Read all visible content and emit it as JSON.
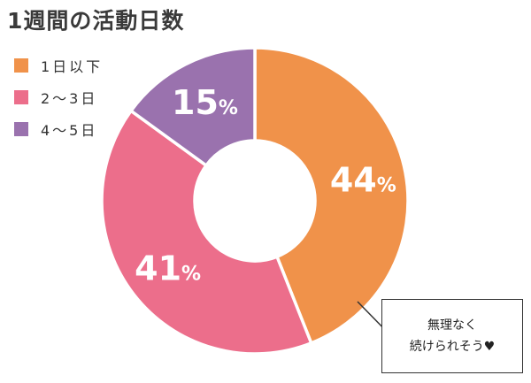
{
  "chart_data": {
    "type": "pie",
    "title": "1週間の活動日数",
    "categories": [
      "1日以下",
      "2〜3日",
      "4〜5日"
    ],
    "values": [
      44,
      41,
      15
    ],
    "value_labels": [
      "44",
      "41",
      "15"
    ],
    "unit": "%",
    "colors": [
      "#F0924A",
      "#EC6E8B",
      "#9A72AE"
    ],
    "legend_placement": "top-left",
    "donut": true
  },
  "annotation": {
    "line1": "無理なく",
    "line2": "続けられそう♥"
  }
}
